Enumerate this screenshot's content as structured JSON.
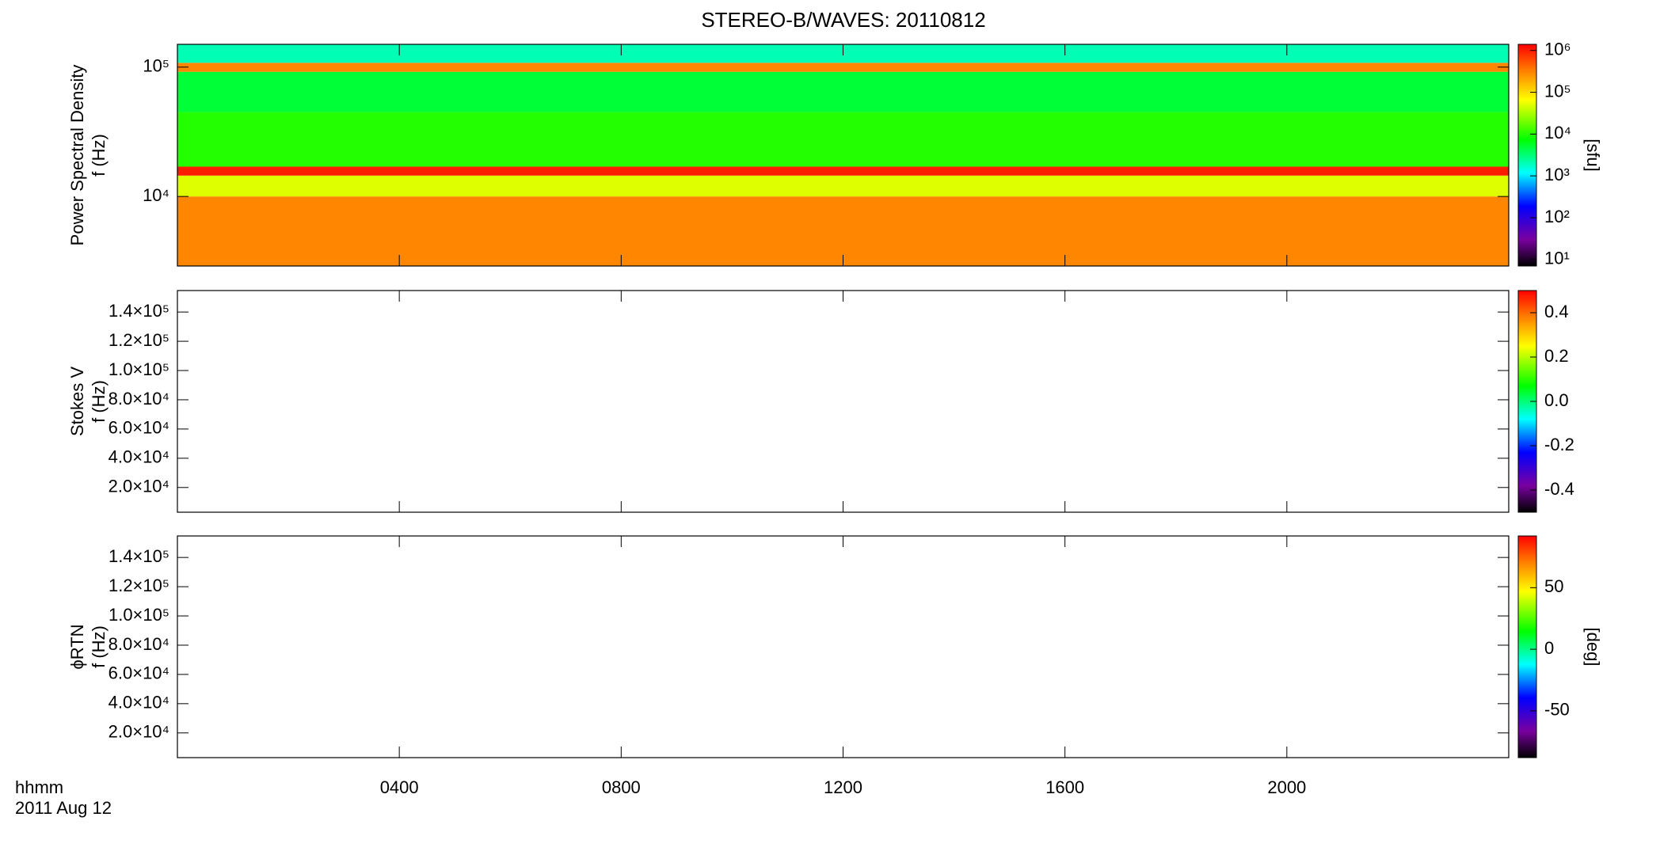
{
  "chart_data": {
    "type": "spectrogram",
    "title": "STEREO-B/WAVES: 20110812",
    "xlim": [
      0,
      24
    ],
    "xticks": [
      {
        "value": 4,
        "label": "0400"
      },
      {
        "value": 8,
        "label": "0800"
      },
      {
        "value": 12,
        "label": "1200"
      },
      {
        "value": 16,
        "label": "1600"
      },
      {
        "value": 20,
        "label": "2000"
      }
    ],
    "x_label": [
      "hhmm",
      "2011 Aug 12"
    ],
    "panels": [
      {
        "ylabel": [
          "Power Spectral Density",
          "f (Hz)"
        ],
        "ylog": true,
        "ylim": [
          2900,
          150000
        ],
        "yticks": [
          {
            "value": 10000,
            "label": "10⁴"
          },
          {
            "value": 100000,
            "label": "10⁵"
          }
        ],
        "colorbar": {
          "label": "[sfu]",
          "log": true,
          "clim": [
            7,
            1400000
          ],
          "ticks": [
            {
              "value": 10,
              "label": "10¹"
            },
            {
              "value": 100,
              "label": "10²"
            },
            {
              "value": 1000,
              "label": "10³"
            },
            {
              "value": 10000,
              "label": "10⁴"
            },
            {
              "value": 100000,
              "label": "10⁵"
            },
            {
              "value": 1000000,
              "label": "10⁶"
            }
          ]
        },
        "bands": {
          "edges": [
            2900,
            10000,
            14500,
            17000,
            45000,
            92000,
            108000,
            150000
          ],
          "values": [
            300000,
            50000,
            1000000,
            10000,
            5000,
            300000,
            2000
          ]
        }
      },
      {
        "ylabel": [
          "Stokes V",
          "f (Hz)"
        ],
        "ylog": false,
        "ylim": [
          3100,
          154700
        ],
        "yticks": [
          {
            "value": 20000,
            "label": "2.0×10⁴"
          },
          {
            "value": 40000,
            "label": "4.0×10⁴"
          },
          {
            "value": 60000,
            "label": "6.0×10⁴"
          },
          {
            "value": 80000,
            "label": "8.0×10⁴"
          },
          {
            "value": 100000,
            "label": "1.0×10⁵"
          },
          {
            "value": 120000,
            "label": "1.2×10⁵"
          },
          {
            "value": 140000,
            "label": "1.4×10⁵"
          }
        ],
        "colorbar": {
          "log": false,
          "clim": [
            -0.5,
            0.5
          ],
          "ticks": [
            {
              "value": -0.4,
              "label": "-0.4"
            },
            {
              "value": -0.2,
              "label": "-0.2"
            },
            {
              "value": 0,
              "label": "0.0"
            },
            {
              "value": 0.2,
              "label": "0.2"
            },
            {
              "value": 0.4,
              "label": "0.4"
            }
          ]
        }
      },
      {
        "ylabel": [
          "ϕRTN",
          "f (Hz)"
        ],
        "ylog": false,
        "ylim": [
          3100,
          154700
        ],
        "yticks": [
          {
            "value": 20000,
            "label": "2.0×10⁴"
          },
          {
            "value": 40000,
            "label": "4.0×10⁴"
          },
          {
            "value": 60000,
            "label": "6.0×10⁴"
          },
          {
            "value": 80000,
            "label": "8.0×10⁴"
          },
          {
            "value": 100000,
            "label": "1.0×10⁵"
          },
          {
            "value": 120000,
            "label": "1.2×10⁵"
          },
          {
            "value": 140000,
            "label": "1.4×10⁵"
          }
        ],
        "colorbar": {
          "label": "[deg]",
          "log": false,
          "clim": [
            -88,
            92
          ],
          "ticks": [
            -50,
            0,
            50
          ]
        }
      }
    ]
  }
}
